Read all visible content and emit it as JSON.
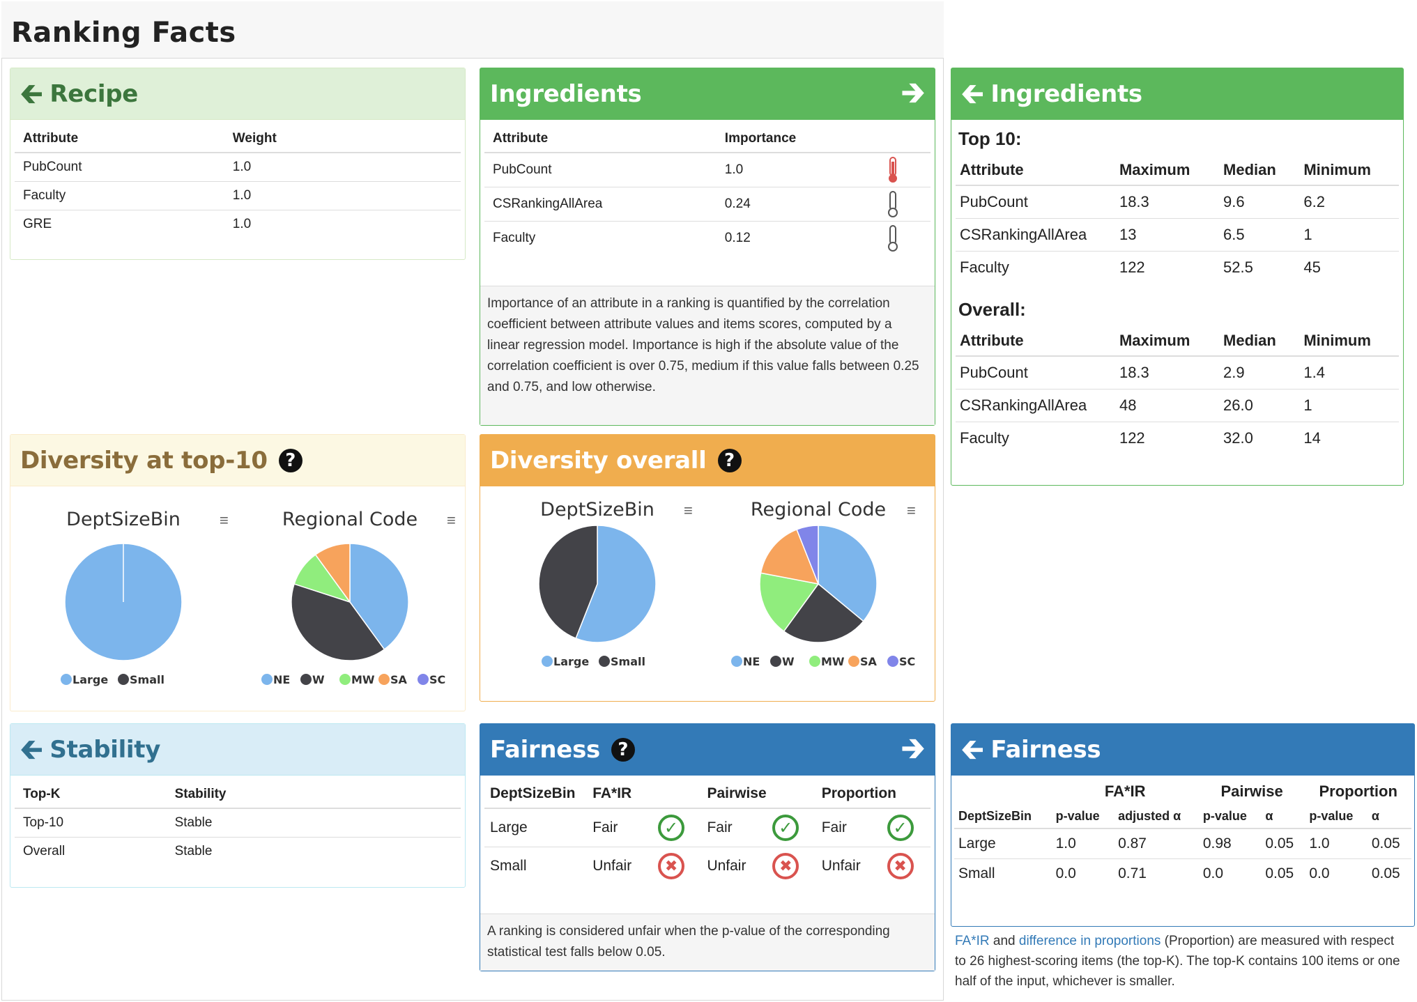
{
  "page": {
    "title": "Ranking Facts"
  },
  "recipe": {
    "title": "Recipe",
    "headers": [
      "Attribute",
      "Weight"
    ],
    "rows": [
      [
        "PubCount",
        "1.0"
      ],
      [
        "Faculty",
        "1.0"
      ],
      [
        "GRE",
        "1.0"
      ]
    ]
  },
  "ingredients": {
    "title": "Ingredients",
    "headers": [
      "Attribute",
      "Importance"
    ],
    "rows": [
      {
        "attr": "PubCount",
        "importance": "1.0",
        "level": "high"
      },
      {
        "attr": "CSRankingAllArea",
        "importance": "0.24",
        "level": "low"
      },
      {
        "attr": "Faculty",
        "importance": "0.12",
        "level": "low"
      }
    ],
    "note": "Importance of an attribute in a ranking is quantified by the correlation coefficient between attribute values and items scores, computed by a linear regression model. Importance is high if the absolute value of the correlation coefficient is over 0.75, medium if this value falls between 0.25 and 0.75, and low otherwise."
  },
  "ingredients_detail": {
    "title": "Ingredients",
    "top_label": "Top 10:",
    "overall_label": "Overall:",
    "headers": [
      "Attribute",
      "Maximum",
      "Median",
      "Minimum"
    ],
    "top_rows": [
      [
        "PubCount",
        "18.3",
        "9.6",
        "6.2"
      ],
      [
        "CSRankingAllArea",
        "13",
        "6.5",
        "1"
      ],
      [
        "Faculty",
        "122",
        "52.5",
        "45"
      ]
    ],
    "overall_rows": [
      [
        "PubCount",
        "18.3",
        "2.9",
        "1.4"
      ],
      [
        "CSRankingAllArea",
        "48",
        "26.0",
        "1"
      ],
      [
        "Faculty",
        "122",
        "32.0",
        "14"
      ]
    ]
  },
  "diversity_top": {
    "title": "Diversity at top-10",
    "charts": [
      {
        "title": "DeptSizeBin",
        "legend": [
          "Large",
          "Small"
        ]
      },
      {
        "title": "Regional Code",
        "legend": [
          "NE",
          "W",
          "MW",
          "SA",
          "SC"
        ]
      }
    ]
  },
  "diversity_overall": {
    "title": "Diversity overall",
    "charts": [
      {
        "title": "DeptSizeBin",
        "legend": [
          "Large",
          "Small"
        ]
      },
      {
        "title": "Regional Code",
        "legend": [
          "NE",
          "W",
          "MW",
          "SA",
          "SC"
        ]
      }
    ]
  },
  "chart_data": [
    {
      "type": "pie",
      "title": "DeptSizeBin",
      "categories": [
        "Large",
        "Small"
      ],
      "values": [
        100,
        0
      ],
      "colors": [
        "#7cb5ec",
        "#434348"
      ]
    },
    {
      "type": "pie",
      "title": "Regional Code",
      "categories": [
        "NE",
        "W",
        "MW",
        "SA",
        "SC"
      ],
      "values": [
        40,
        40,
        10,
        10,
        0
      ],
      "colors": [
        "#7cb5ec",
        "#434348",
        "#90ed7d",
        "#f7a35c",
        "#8085e9"
      ]
    },
    {
      "type": "pie",
      "title": "DeptSizeBin",
      "categories": [
        "Large",
        "Small"
      ],
      "values": [
        56,
        44
      ],
      "colors": [
        "#7cb5ec",
        "#434348"
      ]
    },
    {
      "type": "pie",
      "title": "Regional Code",
      "categories": [
        "NE",
        "W",
        "MW",
        "SA",
        "SC"
      ],
      "values": [
        36,
        24,
        18,
        16,
        6
      ],
      "colors": [
        "#7cb5ec",
        "#434348",
        "#90ed7d",
        "#f7a35c",
        "#8085e9"
      ]
    }
  ],
  "stability": {
    "title": "Stability",
    "headers": [
      "Top-K",
      "Stability"
    ],
    "rows": [
      [
        "Top-10",
        "Stable"
      ],
      [
        "Overall",
        "Stable"
      ]
    ]
  },
  "fairness": {
    "title": "Fairness",
    "headers": [
      "DeptSizeBin",
      "FA*IR",
      "Pairwise",
      "Proportion"
    ],
    "rows": [
      {
        "group": "Large",
        "fair": "Fair",
        "pair": "Fair",
        "prop": "Fair",
        "ok": true
      },
      {
        "group": "Small",
        "fair": "Unfair",
        "pair": "Unfair",
        "prop": "Unfair",
        "ok": false
      }
    ],
    "note": "A ranking is considered unfair when the p-value of the corresponding statistical test falls below 0.05."
  },
  "fairness_detail": {
    "title": "Fairness",
    "group_headers": [
      "FA*IR",
      "Pairwise",
      "Proportion"
    ],
    "sub_headers": [
      "DeptSizeBin",
      "p-value",
      "adjusted α",
      "p-value",
      "α",
      "p-value",
      "α"
    ],
    "rows": [
      [
        "Large",
        "1.0",
        "0.87",
        "0.98",
        "0.05",
        "1.0",
        "0.05"
      ],
      [
        "Small",
        "0.0",
        "0.71",
        "0.0",
        "0.05",
        "0.0",
        "0.05"
      ]
    ],
    "note_link1": "FA*IR",
    "note_mid1": " and ",
    "note_link2": "difference in proportions",
    "note_rest": " (Proportion) are measured with respect to 26 highest-scoring items (the top-K). The top-K contains 100 items or one half of the input, whichever is smaller."
  }
}
